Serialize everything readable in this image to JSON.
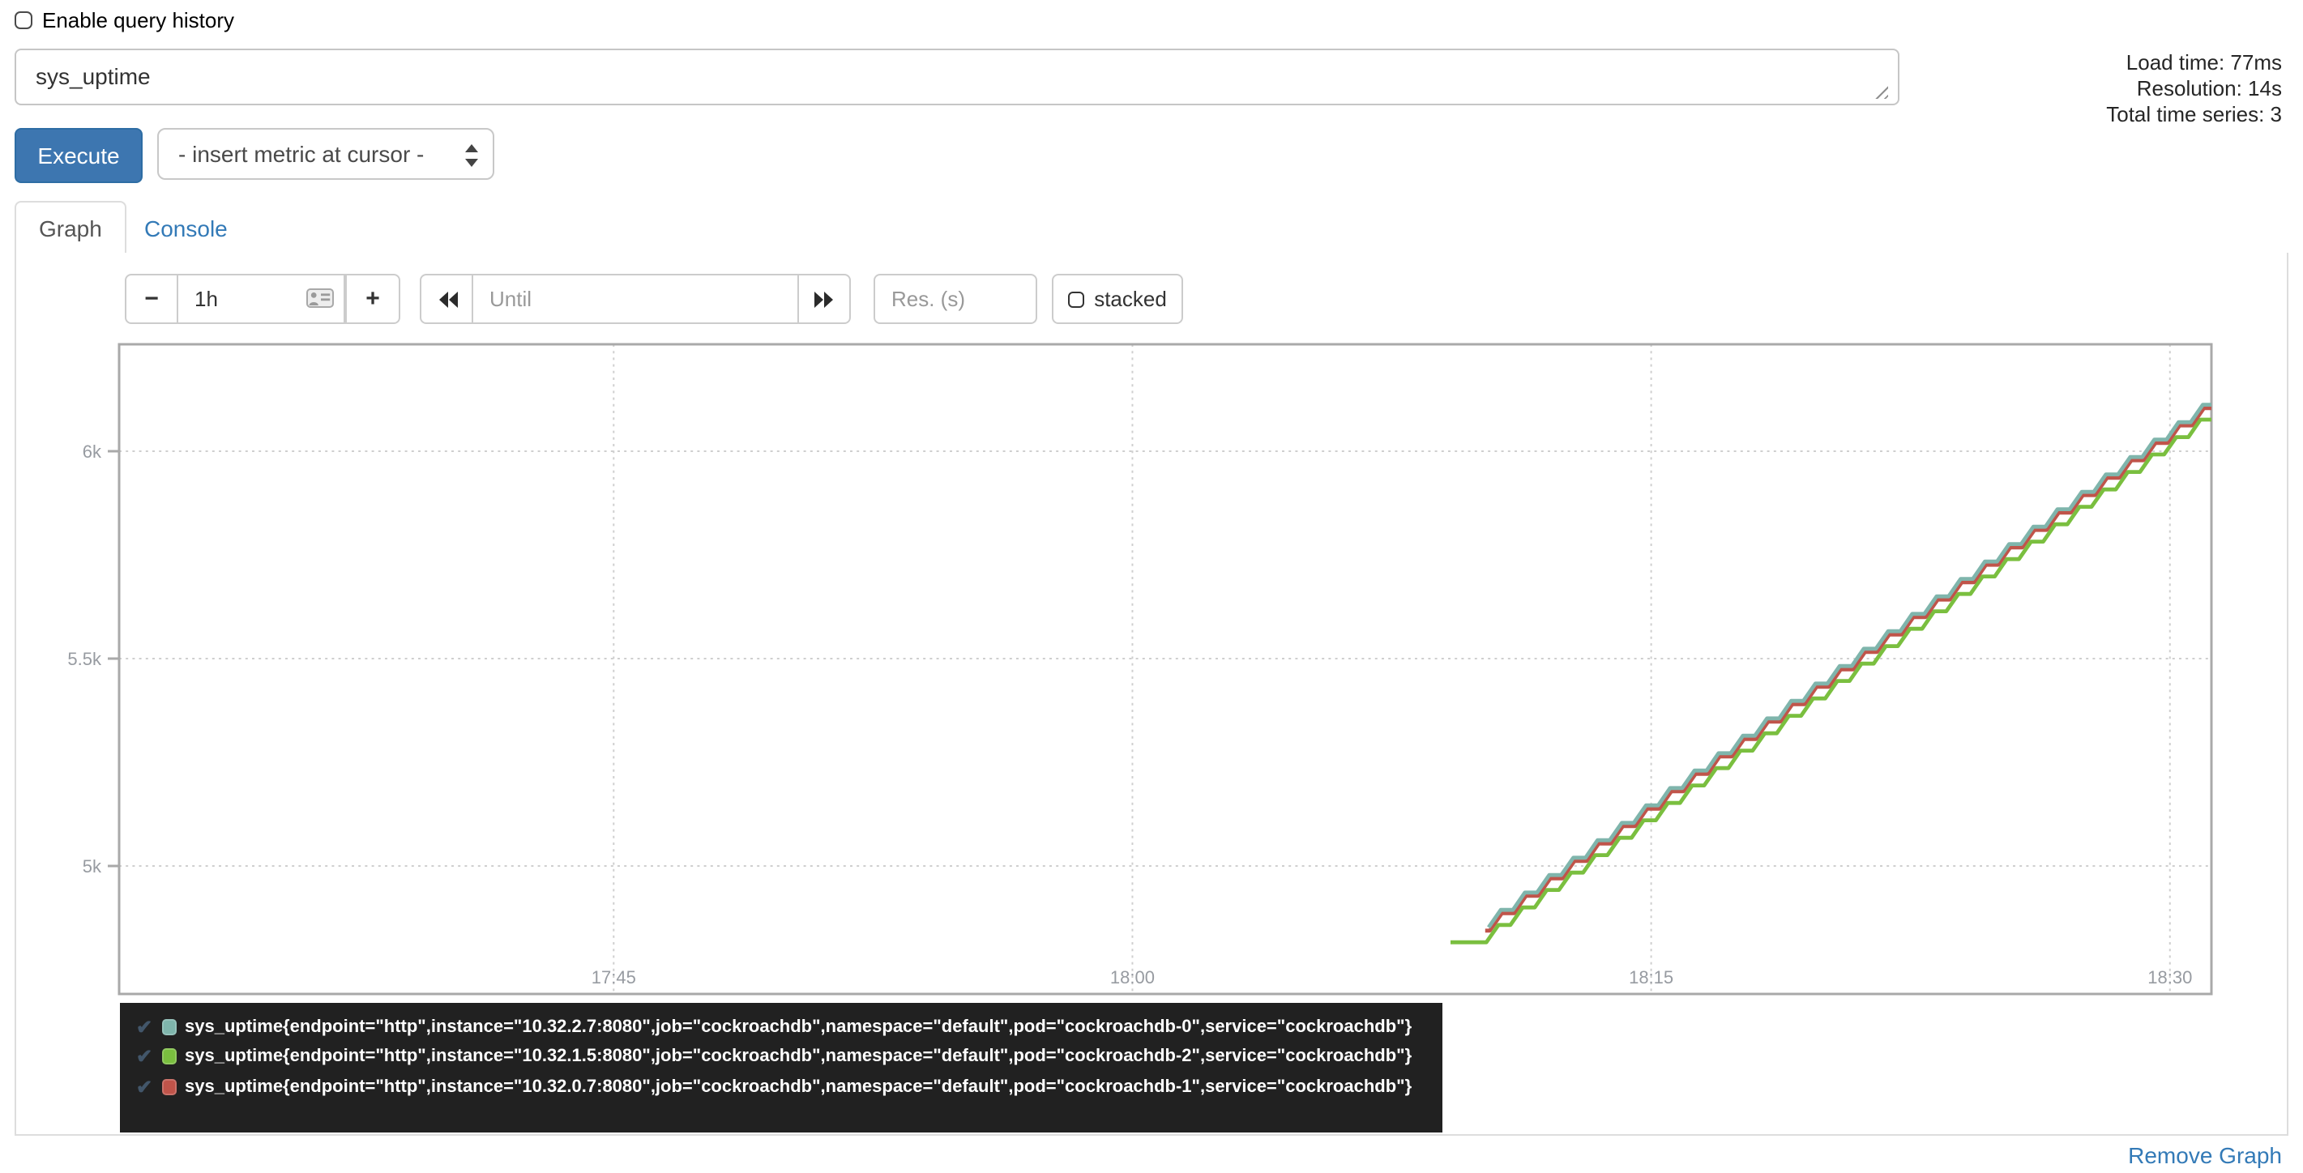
{
  "header": {
    "history_checkbox_label": "Enable query history",
    "stats": {
      "load_time": "Load time: 77ms",
      "resolution": "Resolution: 14s",
      "total_time_series": "Total time series: 3"
    }
  },
  "query": {
    "value": "sys_uptime",
    "execute_label": "Execute",
    "metric_dropdown_label": "- insert metric at cursor -"
  },
  "tabs": {
    "graph": "Graph",
    "console": "Console"
  },
  "controls": {
    "shrink_range_label": "−",
    "range_value": "1h",
    "grow_range_label": "+",
    "until_placeholder": "Until",
    "res_placeholder": "Res. (s)",
    "stacked_label": "stacked"
  },
  "chart_data": {
    "type": "line",
    "title": "",
    "grid": true,
    "legend_position": "bottom",
    "x_axis": {
      "unit": "time-of-day",
      "selected_range": "1h",
      "visible_range_minutes": [
        1050.7,
        1111.2
      ],
      "ticks": [
        {
          "label": "17:45",
          "minutes": 1065
        },
        {
          "label": "18:00",
          "minutes": 1080
        },
        {
          "label": "18:15",
          "minutes": 1095
        },
        {
          "label": "18:30",
          "minutes": 1110
        }
      ]
    },
    "y_axis": {
      "visible_range": [
        4710,
        6270
      ],
      "ticks": [
        {
          "label": "6k",
          "value": 6000
        },
        {
          "label": "5.5k",
          "value": 5500
        },
        {
          "label": "5k",
          "value": 5000
        }
      ]
    },
    "series": [
      {
        "name": "sys_uptime{endpoint=\"http\",instance=\"10.32.2.7:8080\",job=\"cockroachdb\",namespace=\"default\",pod=\"cockroachdb-0\",service=\"cockroachdb\"}",
        "color": "#7fb5ac",
        "shape": "stepped-line",
        "start_minutes": 1090.3,
        "start_value": 4852,
        "end_minutes": 1111.2,
        "end_value": 6117,
        "slope_per_second": 1,
        "step_seconds": 42,
        "lead_flat_seconds": 0,
        "z": 3
      },
      {
        "name": "sys_uptime{endpoint=\"http\",instance=\"10.32.1.5:8080\",job=\"cockroachdb\",namespace=\"default\",pod=\"cockroachdb-2\",service=\"cockroachdb\"}",
        "color": "#7abf3f",
        "shape": "stepped-line",
        "start_minutes": 1089.2,
        "start_value": 4816,
        "end_minutes": 1111.2,
        "end_value": 6088,
        "slope_per_second": 1,
        "step_seconds": 42,
        "lead_flat_seconds": 62,
        "z": 1
      },
      {
        "name": "sys_uptime{endpoint=\"http\",instance=\"10.32.0.7:8080\",job=\"cockroachdb\",namespace=\"default\",pod=\"cockroachdb-1\",service=\"cockroachdb\"}",
        "color": "#c0544a",
        "shape": "stepped-line",
        "start_minutes": 1090.2,
        "start_value": 4844,
        "end_minutes": 1111.2,
        "end_value": 6109,
        "slope_per_second": 1,
        "step_seconds": 42,
        "lead_flat_seconds": 8,
        "z": 2
      }
    ]
  },
  "legend": {
    "items": [
      {
        "color": "#7fb5ac",
        "label": "sys_uptime{endpoint=\"http\",instance=\"10.32.2.7:8080\",job=\"cockroachdb\",namespace=\"default\",pod=\"cockroachdb-0\",service=\"cockroachdb\"}"
      },
      {
        "color": "#7abf3f",
        "label": "sys_uptime{endpoint=\"http\",instance=\"10.32.1.5:8080\",job=\"cockroachdb\",namespace=\"default\",pod=\"cockroachdb-2\",service=\"cockroachdb\"}"
      },
      {
        "color": "#c0544a",
        "label": "sys_uptime{endpoint=\"http\",instance=\"10.32.0.7:8080\",job=\"cockroachdb\",namespace=\"default\",pod=\"cockroachdb-1\",service=\"cockroachdb\"}"
      }
    ]
  },
  "footer": {
    "remove_graph_label": "Remove Graph"
  }
}
